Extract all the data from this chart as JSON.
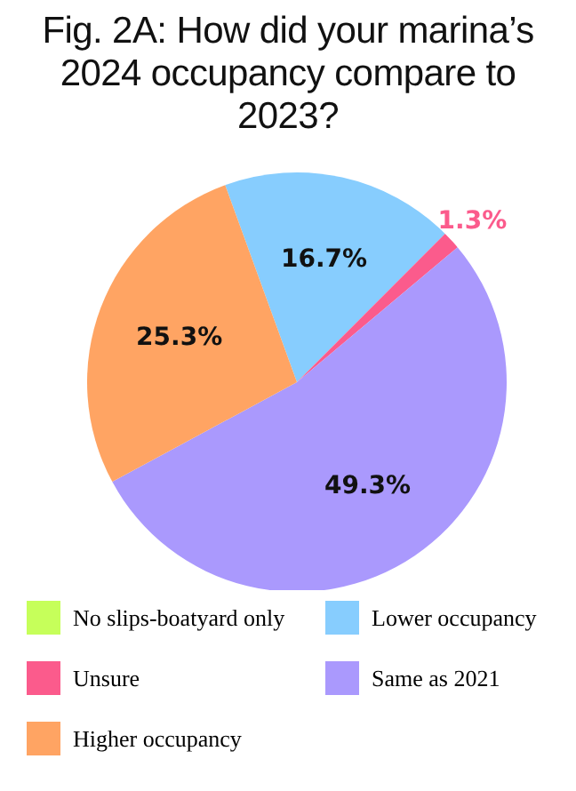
{
  "chart_data": {
    "type": "pie",
    "title": "Fig. 2A: How did your marina’s 2024 occupancy compare to 2023?",
    "categories": [
      "No slips-boatyard only",
      "Lower occupancy",
      "Unsure",
      "Same as 2021",
      "Higher occupancy"
    ],
    "values": [
      0,
      16.7,
      1.3,
      49.3,
      25.3
    ],
    "colors": [
      "#c6ff5a",
      "#87cdfe",
      "#fb5b8c",
      "#aa99fd",
      "#ffa463"
    ],
    "value_labels": [
      null,
      "16.7%",
      "1.3%",
      "49.3%",
      "25.3%"
    ],
    "legend": "bottom"
  }
}
